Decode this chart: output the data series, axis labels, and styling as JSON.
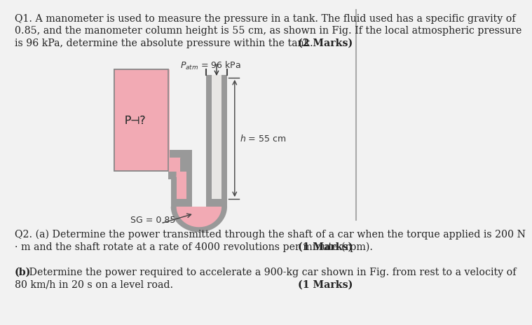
{
  "bg_color": "#f2f2f2",
  "text_color": "#222222",
  "q1_line1": "Q1. A manometer is used to measure the pressure in a tank. The fluid used has a specific gravity of",
  "q1_line2": "0.85, and the manometer column height is 55 cm, as shown in Fig. If the local atmospheric pressure",
  "q1_line3": "is 96 kPa, determine the absolute pressure within the tank.",
  "q1_marks": "(2 Marks)",
  "q2a_line1": "Q2. (a) Determine the power transmitted through the shaft of a car when the torque applied is 200 N",
  "q2a_line2": "· m and the shaft rotate at a rate of 4000 revolutions per minute (rpm).",
  "q2a_marks": "(1 Marks)",
  "q2b_bold": "(b)",
  "q2b_line1": " Determine the power required to accelerate a 900-kg car shown in Fig. from rest to a velocity of",
  "q2b_line2": "80 km/h in 20 s on a level road.",
  "q2b_marks": "(1 Marks)",
  "tank_color": "#f2aab4",
  "tank_border": "#888888",
  "pipe_gray": "#999999",
  "pipe_dark": "#777777",
  "fluid_pink": "#f2aab4",
  "patm_label": "$P_{atm}$ = 96 kPa",
  "h_label": "$h$ = 55 cm",
  "sg_label": "SG = 0.85",
  "p_label": "P⊣?"
}
